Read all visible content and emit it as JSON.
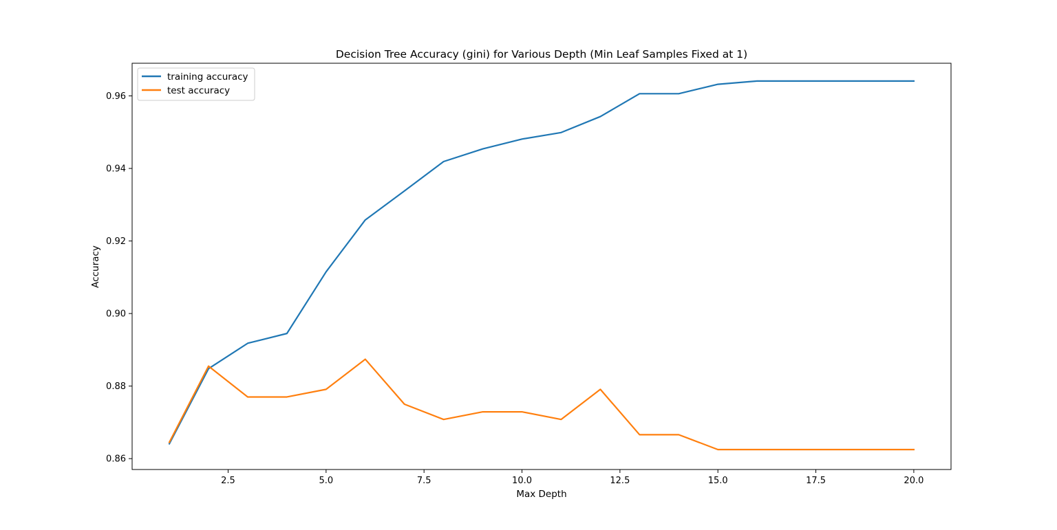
{
  "chart_data": {
    "type": "line",
    "title": "Decision Tree Accuracy (gini) for Various Depth (Min Leaf Samples Fixed at 1)",
    "xlabel": "Max Depth",
    "ylabel": "Accuracy",
    "xlim": [
      0.05,
      20.95
    ],
    "ylim": [
      0.857,
      0.969
    ],
    "x_ticks": [
      2.5,
      5.0,
      7.5,
      10.0,
      12.5,
      15.0,
      17.5,
      20.0
    ],
    "x_tick_labels": [
      "2.5",
      "5.0",
      "7.5",
      "10.0",
      "12.5",
      "15.0",
      "17.5",
      "20.0"
    ],
    "y_ticks": [
      0.86,
      0.88,
      0.9,
      0.92,
      0.94,
      0.96
    ],
    "y_tick_labels": [
      "0.86",
      "0.88",
      "0.90",
      "0.92",
      "0.94",
      "0.96"
    ],
    "grid": false,
    "legend_position": "top-left",
    "x": [
      1,
      2,
      3,
      4,
      5,
      6,
      7,
      8,
      9,
      10,
      11,
      12,
      13,
      14,
      15,
      16,
      17,
      18,
      19,
      20
    ],
    "series": [
      {
        "name": "training accuracy",
        "color": "#1f77b4",
        "values": [
          0.8641,
          0.8848,
          0.8918,
          0.8945,
          0.9115,
          0.9258,
          0.9338,
          0.9419,
          0.9454,
          0.9481,
          0.9499,
          0.9543,
          0.9606,
          0.9606,
          0.9632,
          0.9641,
          0.9641,
          0.9641,
          0.9641,
          0.9641
        ]
      },
      {
        "name": "test accuracy",
        "color": "#ff7f0e",
        "values": [
          0.8645,
          0.8855,
          0.877,
          0.877,
          0.8791,
          0.8874,
          0.875,
          0.8708,
          0.8729,
          0.8729,
          0.8708,
          0.8791,
          0.8666,
          0.8666,
          0.8625,
          0.8625,
          0.8625,
          0.8625,
          0.8625,
          0.8625
        ]
      }
    ]
  }
}
